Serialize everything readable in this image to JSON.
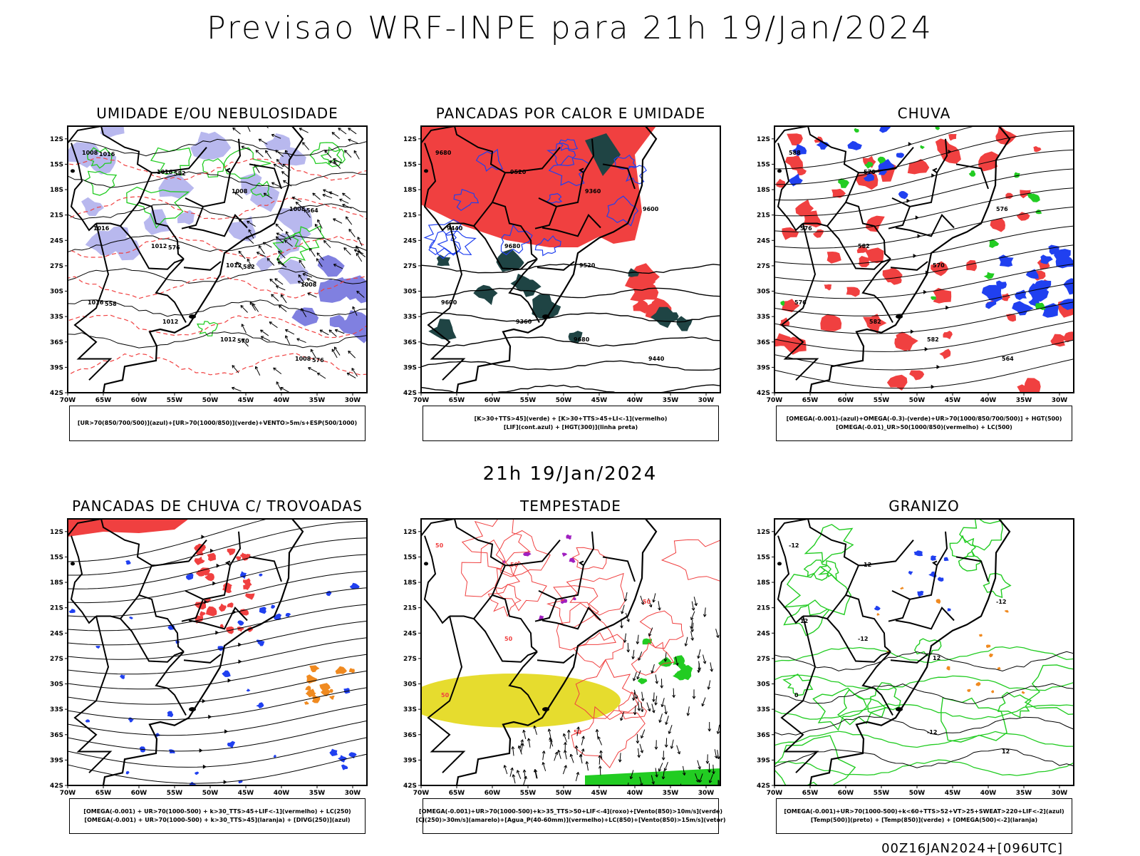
{
  "header": {
    "title": "Previsao WRF-INPE  para 21h 19/Jan/2024"
  },
  "mid_label": "21h 19/Jan/2024",
  "footer": "00Z16JAN2024+[096UTC]",
  "colors": {
    "red": "#f04040",
    "blue": "#2040f0",
    "green": "#22cc22",
    "lavender": "#b8b8ee",
    "darkteal": "#1f4444",
    "yellow": "#e6dc2e",
    "orange": "#f08a20",
    "purple": "#a020c0"
  },
  "chart_data": [
    {
      "type": "map",
      "id": "umidade",
      "title": "UMIDADE E/OU NEBULOSIDADE",
      "xlim": [
        -70,
        -28
      ],
      "ylim": [
        -42,
        -10.5
      ],
      "x_ticks": [
        "70W",
        "65W",
        "60W",
        "55W",
        "50W",
        "45W",
        "40W",
        "35W",
        "30W"
      ],
      "y_ticks": [
        "12S",
        "15S",
        "18S",
        "21S",
        "24S",
        "27S",
        "30S",
        "33S",
        "36S",
        "39S",
        "42S"
      ],
      "legend": [
        "[UR>70(850/700/500)](azul)+[UR>70(1000/850)](verde)+VENTO>5m/s+ESP(500/1000)"
      ],
      "contour_labels": [
        "1008",
        "1012",
        "1012",
        "1008",
        "1016",
        "1016",
        "1012",
        "1008",
        "1016",
        "1012",
        "1008",
        "1008",
        "1016",
        "576",
        "570",
        "564",
        "558",
        "582",
        "582",
        "576"
      ]
    },
    {
      "type": "map",
      "id": "pancadas-calor",
      "title": "PANCADAS POR CALOR E UMIDADE",
      "xlim": [
        -70,
        -28
      ],
      "ylim": [
        -42,
        -10.5
      ],
      "x_ticks": [
        "70W",
        "65W",
        "60W",
        "55W",
        "50W",
        "45W",
        "40W",
        "35W",
        "30W"
      ],
      "y_ticks": [
        "12S",
        "15S",
        "18S",
        "21S",
        "24S",
        "27S",
        "30S",
        "33S",
        "36S",
        "39S",
        "42S"
      ],
      "legend": [
        "[K>30+TTS>45](verde) + [K>30+TTS>45+LI<-1](vermelho)",
        "[LIF](cont.azul) + [HGT(300)](linha preta)"
      ],
      "contour_labels": [
        "9680",
        "9680",
        "9680",
        "9600",
        "9600",
        "9520",
        "9520",
        "9440",
        "9440",
        "9360",
        "9360"
      ]
    },
    {
      "type": "map",
      "id": "chuva",
      "title": "CHUVA",
      "xlim": [
        -70,
        -28
      ],
      "ylim": [
        -42,
        -10.5
      ],
      "x_ticks": [
        "70W",
        "65W",
        "60W",
        "55W",
        "50W",
        "45W",
        "40W",
        "35W",
        "30W"
      ],
      "y_ticks": [
        "12S",
        "15S",
        "18S",
        "21S",
        "24S",
        "27S",
        "30S",
        "33S",
        "36S",
        "39S",
        "42S"
      ],
      "legend": [
        "[OMEGA(-0.001)-(azul)+OMEGA(-0.3)-(verde)+UR>70(1000/850/700/500)] + HGT(500)",
        "[OMEGA(-0.01)_UR>50(1000/850)(vermelho) + LC(500)"
      ],
      "contour_labels": [
        "588",
        "582",
        "582",
        "576",
        "576",
        "570",
        "570",
        "564",
        "576",
        "582"
      ]
    },
    {
      "type": "map",
      "id": "trovoadas",
      "title": "PANCADAS DE CHUVA C/ TROVOADAS",
      "xlim": [
        -70,
        -28
      ],
      "ylim": [
        -42,
        -10.5
      ],
      "x_ticks": [
        "70W",
        "65W",
        "60W",
        "55W",
        "50W",
        "45W",
        "40W",
        "35W",
        "30W"
      ],
      "y_ticks": [
        "12S",
        "15S",
        "18S",
        "21S",
        "24S",
        "27S",
        "30S",
        "33S",
        "36S",
        "39S",
        "42S"
      ],
      "legend": [
        "[OMEGA(-0.001) + UR>70(1000-500) + k>30_TTS>45+LIF<-1](vermelho) + LC(250)",
        "[OMEGA(-0.001) + UR>70(1000-500) + k>30_TTS>45](laranja) + [DIVG(250)](azul)"
      ],
      "contour_labels": []
    },
    {
      "type": "map",
      "id": "tempestade",
      "title": "TEMPESTADE",
      "xlim": [
        -70,
        -28
      ],
      "ylim": [
        -42,
        -10.5
      ],
      "x_ticks": [
        "70W",
        "65W",
        "60W",
        "55W",
        "50W",
        "45W",
        "40W",
        "35W",
        "30W"
      ],
      "y_ticks": [
        "12S",
        "15S",
        "18S",
        "21S",
        "24S",
        "27S",
        "30S",
        "33S",
        "36S",
        "39S",
        "42S"
      ],
      "legend": [
        "[OMEGA(-0.001)+UR>70(1000-500)+k>35_TTS>50+LIF<-4](roxo)+[Vento(850)>10m/s](verde)",
        "[CJ(250)>30m/s](amarelo)+[Agua_P(40-60mm)](vermelho)+LC(850)+[Vento(850)>15m/s](vetor)"
      ],
      "contour_labels": [
        "50",
        "50",
        "50",
        "50",
        "50",
        "50"
      ]
    },
    {
      "type": "map",
      "id": "granizo",
      "title": "GRANIZO",
      "xlim": [
        -70,
        -28
      ],
      "ylim": [
        -42,
        -10.5
      ],
      "x_ticks": [
        "70W",
        "65W",
        "60W",
        "55W",
        "50W",
        "45W",
        "40W",
        "35W",
        "30W"
      ],
      "y_ticks": [
        "12S",
        "15S",
        "18S",
        "21S",
        "24S",
        "27S",
        "30S",
        "33S",
        "36S",
        "39S",
        "42S"
      ],
      "legend": [
        "[OMEGA(-0.001)+UR>70(1000-500)+k<60+TTS>52+VT>25+SWEAT>220+LIF<-2](azul)",
        "[Temp(500)](preto) + [Temp(850)](verde) + [OMEGA(500)<-2](laranja)"
      ],
      "contour_labels": [
        "-12",
        "-12",
        "-12",
        "-12",
        "0",
        "12",
        "12",
        "12",
        "12"
      ]
    }
  ]
}
